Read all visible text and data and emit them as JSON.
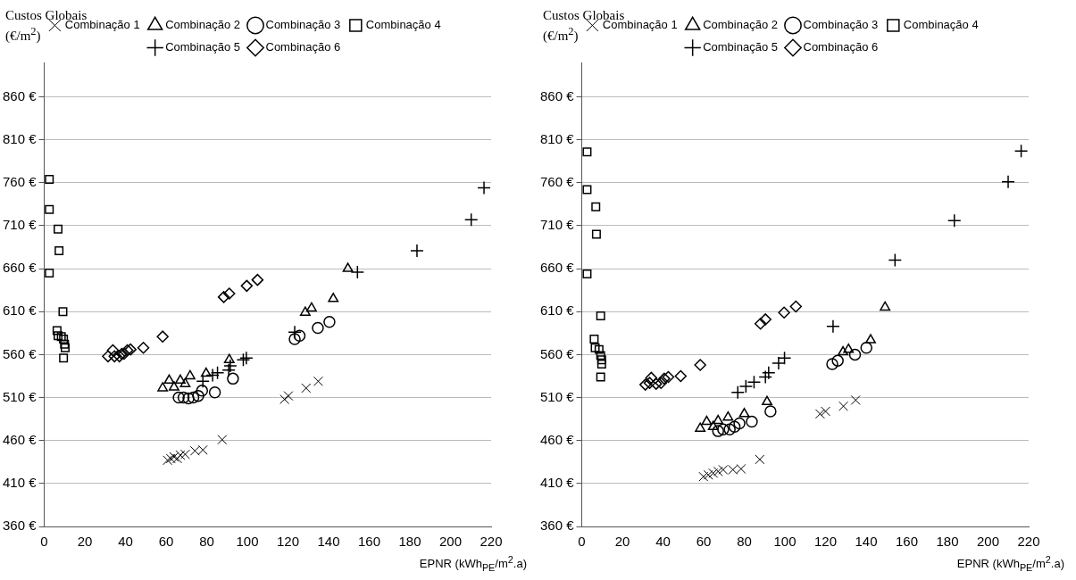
{
  "chart_data": [
    {
      "type": "scatter",
      "xlabel": "EPNR (kWh$_{PE}$/m$^{2}$.a)",
      "ylabel": "Custos Globais (€/m$^{2}$)",
      "xlim": [
        0,
        220
      ],
      "xticks": [
        0,
        20,
        40,
        60,
        80,
        100,
        120,
        140,
        160,
        180,
        200,
        220
      ],
      "ylim": [
        360,
        900
      ],
      "yticks": [
        {
          "value": 360,
          "label": "360 €"
        },
        {
          "value": 410,
          "label": "410 €"
        },
        {
          "value": 460,
          "label": "460 €"
        },
        {
          "value": 510,
          "label": "510 €"
        },
        {
          "value": 560,
          "label": "560 €"
        },
        {
          "value": 610,
          "label": "610 €"
        },
        {
          "value": 660,
          "label": "660 €"
        },
        {
          "value": 710,
          "label": "710 €"
        },
        {
          "value": 760,
          "label": "760 €"
        },
        {
          "value": 810,
          "label": "810 €"
        },
        {
          "value": 860,
          "label": "860 €"
        }
      ],
      "grid": "y",
      "legend": "top",
      "series": [
        {
          "name": "Combinação 1",
          "color": "#000000",
          "marker": "cross",
          "x": [
            60.7,
            62.3,
            63.9,
            65.5,
            67,
            69.4,
            74.2,
            78.1,
            87.6,
            118.3,
            120.2,
            128.9,
            134.9
          ],
          "values": [
            437,
            439,
            441,
            439,
            443,
            444,
            448,
            449,
            461,
            508,
            512,
            521,
            529
          ]
        },
        {
          "name": "Combinação 2",
          "color": "#000000",
          "marker": "triangle",
          "x": [
            58.3,
            61.5,
            63.9,
            67,
            69.4,
            71.8,
            79.7,
            91.1,
            128.5,
            131.6,
            142.3,
            149.5
          ],
          "values": [
            521,
            530,
            522,
            530,
            526,
            535,
            538,
            554,
            609,
            614,
            625,
            660
          ]
        },
        {
          "name": "Combinação 3",
          "color": "#000000",
          "marker": "circle",
          "x": [
            66.2,
            68.6,
            71,
            73.4,
            75.8,
            77.7,
            84,
            92.9,
            123.3,
            125.7,
            134.7,
            140.4
          ],
          "values": [
            510,
            510,
            509,
            510,
            512,
            518,
            516,
            532,
            578,
            582,
            591,
            598
          ]
        },
        {
          "name": "Combinação 4",
          "color": "#000000",
          "marker": "square",
          "x": [
            2.5,
            2.5,
            6.8,
            7.3,
            2.5,
            9.2,
            6.3,
            6.8,
            8.4,
            9.5,
            10,
            10.3,
            9.5
          ],
          "values": [
            764,
            729,
            706,
            681,
            655,
            610,
            588,
            582,
            581,
            578,
            572,
            568,
            556
          ]
        },
        {
          "name": "Combinação 5",
          "color": "#000000",
          "marker": "plus",
          "x": [
            78.1,
            82.9,
            85.3,
            90.8,
            91.6,
            98,
            99.5,
            123.3,
            154.2,
            183.5,
            210.2,
            216.5
          ],
          "values": [
            529,
            536,
            539,
            542,
            547,
            554,
            556,
            586,
            656,
            681,
            717,
            754
          ]
        },
        {
          "name": "Combinação 6",
          "color": "#000000",
          "marker": "diamond",
          "x": [
            31.4,
            33.8,
            34.6,
            37,
            38.2,
            39.3,
            40.9,
            42.5,
            48.8,
            58.3,
            88.4,
            91.1,
            99.7,
            105
          ],
          "values": [
            558,
            565,
            558,
            558,
            561,
            561,
            565,
            566,
            568,
            581,
            627,
            631,
            640,
            647
          ]
        }
      ]
    },
    {
      "type": "scatter",
      "xlabel": "EPNR (kWh$_{PE}$/m$^{2}$.a)",
      "ylabel": "Custos Globais (€/m$^{2}$)",
      "xlim": [
        0,
        220
      ],
      "xticks": [
        0,
        20,
        40,
        60,
        80,
        100,
        120,
        140,
        160,
        180,
        200,
        220
      ],
      "ylim": [
        360,
        900
      ],
      "yticks": [
        {
          "value": 360,
          "label": "360 €"
        },
        {
          "value": 410,
          "label": "410 €"
        },
        {
          "value": 460,
          "label": "460 €"
        },
        {
          "value": 510,
          "label": "510 €"
        },
        {
          "value": 560,
          "label": "560 €"
        },
        {
          "value": 610,
          "label": "610 €"
        },
        {
          "value": 660,
          "label": "660 €"
        },
        {
          "value": 710,
          "label": "710 €"
        },
        {
          "value": 760,
          "label": "760 €"
        },
        {
          "value": 810,
          "label": "810 €"
        },
        {
          "value": 860,
          "label": "860 €"
        }
      ],
      "grid": "y",
      "legend": "top",
      "series": [
        {
          "name": "Combinação 1",
          "color": "#000000",
          "marker": "cross",
          "x": [
            59.9,
            62.3,
            64.7,
            67.1,
            69.6,
            74.4,
            78.4,
            87.6,
            117.3,
            120,
            128.8,
            134.8
          ],
          "values": [
            418,
            420,
            422,
            424,
            426,
            426,
            427,
            438,
            491,
            494,
            500,
            507
          ]
        },
        {
          "name": "Combinação 2",
          "color": "#000000",
          "marker": "triangle",
          "x": [
            58.3,
            61.5,
            64.7,
            67.1,
            72,
            80,
            91.2,
            128.6,
            131.3,
            142.2,
            149.3
          ],
          "values": [
            474,
            482,
            476,
            483,
            487,
            491,
            505,
            563,
            566,
            577,
            615
          ]
        },
        {
          "name": "Combinação 3",
          "color": "#000000",
          "marker": "circle",
          "x": [
            67.1,
            69.6,
            72.8,
            75.2,
            77.6,
            83.7,
            92.9,
            123.3,
            126,
            134.5,
            140.1
          ],
          "values": [
            471,
            473,
            473,
            476,
            480,
            482,
            494,
            549,
            553,
            560,
            568
          ]
        },
        {
          "name": "Combinação 4",
          "color": "#000000",
          "marker": "square",
          "x": [
            2.6,
            2.6,
            6.9,
            7.2,
            2.6,
            9.3,
            6.1,
            6.6,
            8.5,
            9.3,
            9.8,
            9.8,
            9.3
          ],
          "values": [
            796,
            752,
            732,
            700,
            654,
            605,
            578,
            568,
            566,
            559,
            554,
            549,
            534
          ]
        },
        {
          "name": "Combinação 5",
          "color": "#000000",
          "marker": "plus",
          "x": [
            76.8,
            80.8,
            84.8,
            90.4,
            92,
            96.9,
            99.8,
            123.7,
            154.2,
            183.4,
            209.9,
            216.3
          ],
          "values": [
            516,
            523,
            528,
            534,
            539,
            550,
            556,
            593,
            670,
            716,
            761,
            797
          ]
        },
        {
          "name": "Combinação 6",
          "color": "#000000",
          "marker": "diamond",
          "x": [
            31.3,
            33.4,
            34.2,
            36.6,
            39,
            40.6,
            42.6,
            48.7,
            58.3,
            88,
            90.4,
            99.6,
            105.4
          ],
          "values": [
            525,
            527,
            533,
            526,
            527,
            532,
            534,
            535,
            548,
            596,
            601,
            609,
            616
          ]
        }
      ]
    }
  ]
}
